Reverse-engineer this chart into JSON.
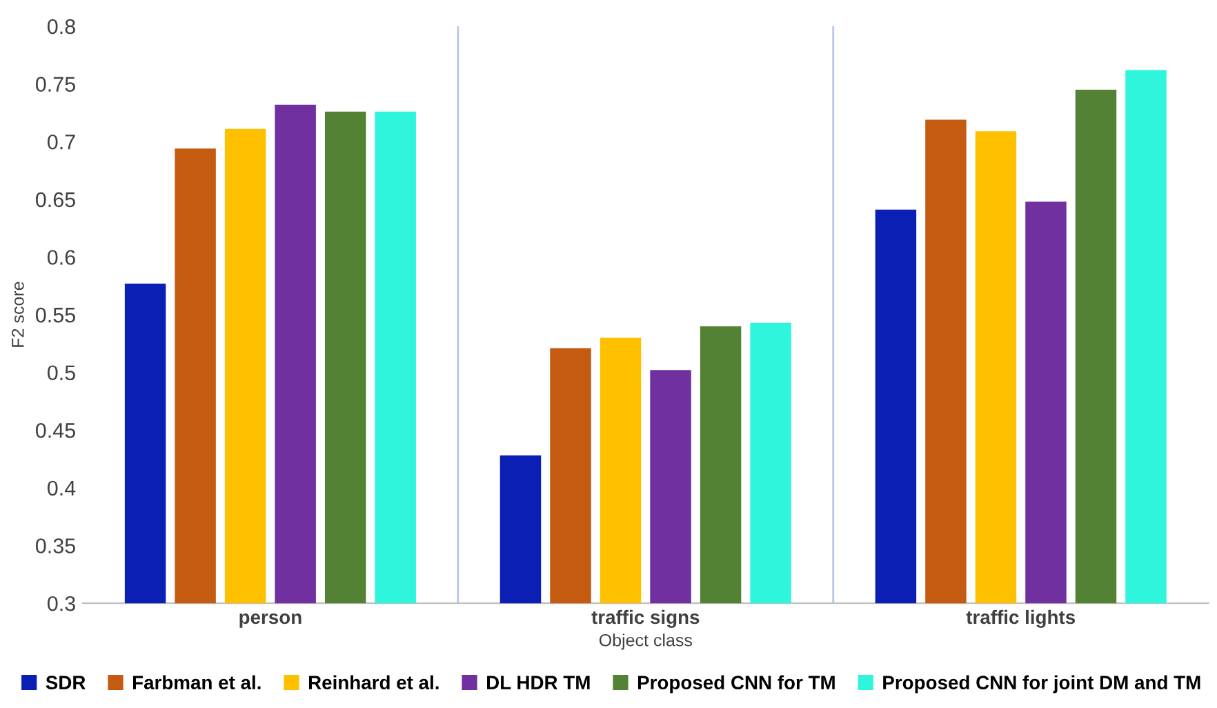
{
  "chart_data": {
    "type": "bar",
    "xlabel": "Object class",
    "ylabel": "F2 score",
    "categories": [
      "person",
      "traffic signs",
      "traffic lights"
    ],
    "series": [
      {
        "name": "SDR",
        "color": "#0b1fb5",
        "values": [
          0.577,
          0.428,
          0.641
        ]
      },
      {
        "name": "Farbman et al.",
        "color": "#c55a11",
        "values": [
          0.694,
          0.521,
          0.719
        ]
      },
      {
        "name": "Reinhard et al.",
        "color": "#ffc000",
        "values": [
          0.711,
          0.53,
          0.709
        ]
      },
      {
        "name": "DL HDR TM",
        "color": "#7030a0",
        "values": [
          0.732,
          0.502,
          0.648
        ]
      },
      {
        "name": "Proposed CNN for TM",
        "color": "#548235",
        "values": [
          0.726,
          0.54,
          0.745
        ]
      },
      {
        "name": "Proposed CNN for joint DM and TM",
        "color": "#2ef5dc",
        "values": [
          0.726,
          0.543,
          0.762
        ]
      }
    ],
    "ylim": [
      0.3,
      0.8
    ],
    "yticks": [
      0.3,
      0.35,
      0.4,
      0.45,
      0.5,
      0.55,
      0.6,
      0.65,
      0.7,
      0.75,
      0.8
    ],
    "legend": "bottom",
    "grid": false
  }
}
